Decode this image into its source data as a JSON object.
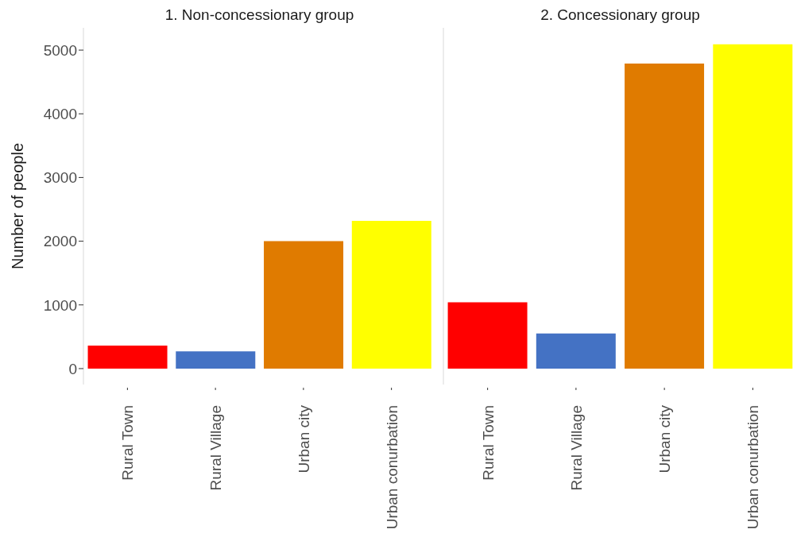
{
  "chart_data": [
    {
      "type": "bar",
      "title": "1. Non-concessionary group",
      "ylabel": "Number of people",
      "categories": [
        "Rural Town",
        "Rural Village",
        "Urban city",
        "Urban conurbation"
      ],
      "values": [
        360,
        270,
        2000,
        2320
      ],
      "colors": [
        "#ff0000",
        "#4472c4",
        "#e07b00",
        "#ffff00"
      ],
      "ylim": [
        -250,
        5350
      ],
      "yticks": [
        0,
        1000,
        2000,
        3000,
        4000,
        5000
      ],
      "grid": false,
      "legend": false
    },
    {
      "type": "bar",
      "title": "2. Concessionary group",
      "categories": [
        "Rural Town",
        "Rural Village",
        "Urban city",
        "Urban conurbation"
      ],
      "values": [
        1040,
        550,
        4790,
        5090
      ],
      "colors": [
        "#ff0000",
        "#4472c4",
        "#e07b00",
        "#ffff00"
      ],
      "ylim": [
        -250,
        5350
      ],
      "yticks": [
        0,
        1000,
        2000,
        3000,
        4000,
        5000
      ],
      "grid": false,
      "legend": false,
      "tick_labels": "x"
    }
  ]
}
